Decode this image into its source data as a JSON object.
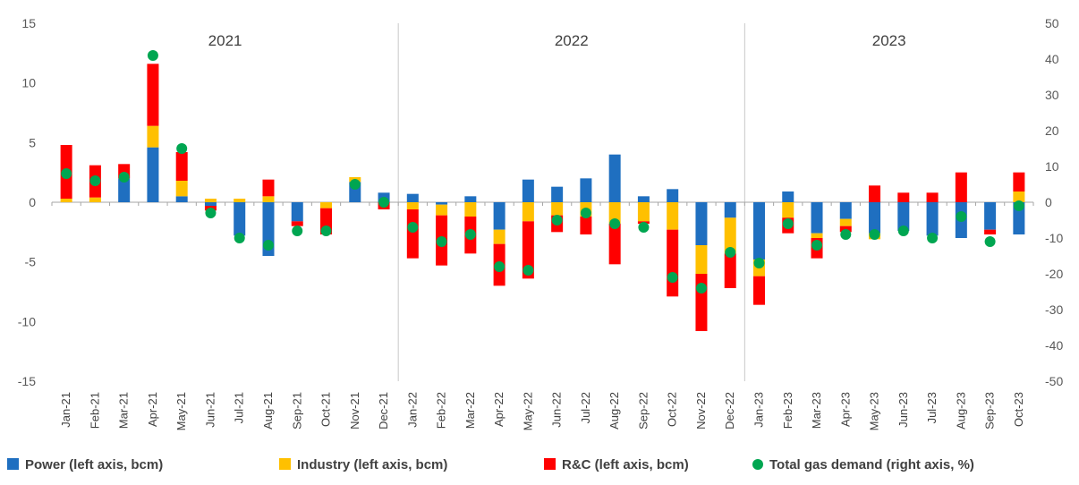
{
  "chart_data": {
    "type": "bar",
    "stacked": true,
    "categories": [
      "Jan-21",
      "Feb-21",
      "Mar-21",
      "Apr-21",
      "May-21",
      "Jun-21",
      "Jul-21",
      "Aug-21",
      "Sep-21",
      "Oct-21",
      "Nov-21",
      "Dec-21",
      "Jan-22",
      "Feb-22",
      "Mar-22",
      "Apr-22",
      "May-22",
      "Jun-22",
      "Jul-22",
      "Aug-22",
      "Sep-22",
      "Oct-22",
      "Nov-22",
      "Dec-22",
      "Jan-23",
      "Feb-23",
      "Mar-23",
      "Apr-23",
      "May-23",
      "Jun-23",
      "Jul-23",
      "Aug-23",
      "Sep-23",
      "Oct-23"
    ],
    "year_groups": [
      {
        "label": "2021",
        "start": 0,
        "end": 11
      },
      {
        "label": "2022",
        "start": 12,
        "end": 23
      },
      {
        "label": "2023",
        "start": 24,
        "end": 33
      }
    ],
    "series": [
      {
        "name": "Power (left axis, bcm)",
        "axis": "left",
        "kind": "bar",
        "color": "#1f6fc0",
        "values": [
          0.0,
          0.0,
          2.0,
          4.6,
          0.5,
          -0.3,
          -2.8,
          -4.5,
          -1.6,
          0.0,
          1.7,
          0.8,
          0.7,
          -0.2,
          0.5,
          -2.3,
          1.9,
          1.3,
          2.0,
          4.0,
          0.5,
          1.1,
          -3.6,
          -1.3,
          -4.8,
          0.9,
          -2.6,
          -1.4,
          -2.6,
          -2.4,
          -2.8,
          -3.0,
          -2.3,
          -2.7
        ]
      },
      {
        "name": "Industry (left axis, bcm)",
        "axis": "left",
        "kind": "bar",
        "color": "#ffc000",
        "values": [
          0.3,
          0.4,
          0.0,
          1.8,
          1.3,
          0.3,
          0.3,
          0.5,
          0.0,
          -0.5,
          0.4,
          0.0,
          -0.6,
          -0.9,
          -1.2,
          -1.2,
          -1.6,
          -1.1,
          -1.2,
          -1.8,
          -1.6,
          -2.3,
          -2.4,
          -3.0,
          -1.4,
          -1.3,
          -0.4,
          -0.6,
          -0.5,
          0.0,
          0.0,
          0.0,
          0.0,
          0.9
        ]
      },
      {
        "name": "R&C (left axis, bcm)",
        "axis": "left",
        "kind": "bar",
        "color": "#ff0000",
        "values": [
          4.5,
          2.7,
          1.2,
          5.2,
          2.4,
          -0.4,
          0.0,
          1.4,
          -0.4,
          -2.2,
          0.0,
          -0.6,
          -4.1,
          -4.2,
          -3.1,
          -3.5,
          -4.8,
          -1.4,
          -1.5,
          -3.4,
          -0.2,
          -5.6,
          -4.8,
          -2.9,
          -2.4,
          -1.3,
          -1.7,
          -0.5,
          1.4,
          0.8,
          0.8,
          2.5,
          -0.4,
          1.6
        ]
      },
      {
        "name": "Total gas demand (right axis, %)",
        "axis": "right",
        "kind": "scatter",
        "color": "#00a651",
        "values": [
          8,
          6,
          7,
          41,
          15,
          -3,
          -10,
          -12,
          -8,
          -8,
          5,
          0,
          -7,
          -11,
          -9,
          -18,
          -19,
          -5,
          -3,
          -6,
          -7,
          -21,
          -24,
          -14,
          -17,
          -6,
          -12,
          -9,
          -9,
          -8,
          -10,
          -4,
          -11,
          -1
        ]
      }
    ],
    "left_axis": {
      "min": -15,
      "max": 15,
      "step": 5,
      "unit": "bcm"
    },
    "right_axis": {
      "min": -50,
      "max": 50,
      "step": 10,
      "unit": "%"
    },
    "title": "",
    "xlabel": "",
    "ylabel": "",
    "grid": "vertical separators between years only",
    "legend_placement": "bottom"
  }
}
